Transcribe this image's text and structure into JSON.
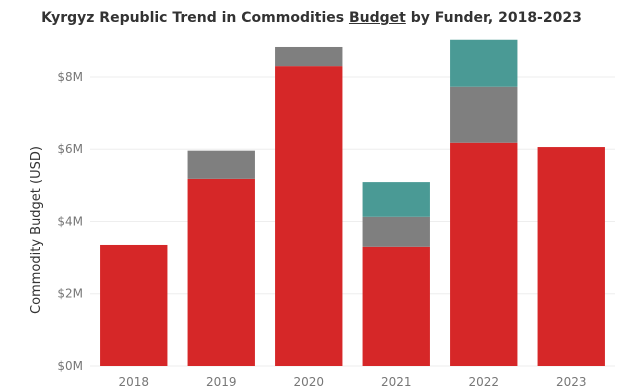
{
  "chart_data": {
    "type": "bar",
    "stacked": true,
    "title_parts": {
      "before": "Kyrgyz Republic Trend in Commodities ",
      "underlined": "Budget",
      "after": " by Funder, 2018-2023"
    },
    "xlabel": "",
    "ylabel": "Commodity Budget (USD)",
    "categories": [
      "2018",
      "2019",
      "2020",
      "2021",
      "2022",
      "2023"
    ],
    "y_ticks": [
      {
        "value": 0,
        "label": "$0M"
      },
      {
        "value": 2,
        "label": "$2M"
      },
      {
        "value": 4,
        "label": "$4M"
      },
      {
        "value": 6,
        "label": "$6M"
      },
      {
        "value": 8,
        "label": "$8M"
      }
    ],
    "y_unit": "millions USD",
    "ylim": [
      0,
      9.3
    ],
    "grid": "horizontal",
    "legend": "none",
    "series": [
      {
        "color": "#d62728",
        "values": [
          3.35,
          5.18,
          8.3,
          3.3,
          6.18,
          6.06
        ]
      },
      {
        "color": "#7f7f7f",
        "values": [
          0,
          0.78,
          0.53,
          0.83,
          1.55,
          0
        ]
      },
      {
        "color": "#4a9a95",
        "values": [
          0,
          0,
          0,
          0.96,
          1.3,
          0
        ]
      }
    ]
  }
}
